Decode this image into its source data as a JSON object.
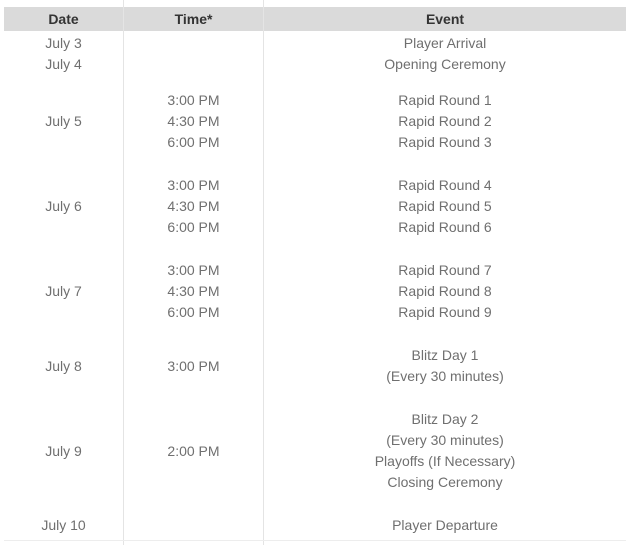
{
  "table": {
    "headers": [
      "Date",
      "Time*",
      "Event"
    ],
    "rows": [
      {
        "style": "tight first",
        "date": "July 3",
        "times": [],
        "events": [
          "Player Arrival"
        ]
      },
      {
        "style": "tight",
        "date": "July 4",
        "times": [],
        "events": [
          "Opening Ceremony"
        ]
      },
      {
        "style": "pad-top-lg",
        "date": "July 5",
        "times": [
          "3:00 PM",
          "4:30 PM",
          "6:00 PM"
        ],
        "events": [
          "Rapid Round 1",
          "Rapid Round 2",
          "Rapid Round 3"
        ]
      },
      {
        "style": "",
        "date": "July 6",
        "times": [
          "3:00 PM",
          "4:30 PM",
          "6:00 PM"
        ],
        "events": [
          "Rapid Round 4",
          "Rapid Round 5",
          "Rapid Round 6"
        ]
      },
      {
        "style": "",
        "date": "July 7",
        "times": [
          "3:00 PM",
          "4:30 PM",
          "6:00 PM"
        ],
        "events": [
          "Rapid Round 7",
          "Rapid Round 8",
          "Rapid Round 9"
        ]
      },
      {
        "style": "",
        "date": "July 8",
        "times": [
          "3:00 PM"
        ],
        "events": [
          "Blitz Day 1",
          "(Every 30 minutes)"
        ]
      },
      {
        "style": "",
        "date": "July 9",
        "times": [
          "2:00 PM"
        ],
        "events": [
          "Blitz Day 2",
          "(Every 30 minutes)",
          "Playoffs (If Necessary)",
          "Closing Ceremony"
        ]
      },
      {
        "style": "",
        "date": "July 10",
        "times": [],
        "events": [
          "Player Departure"
        ]
      }
    ],
    "colors": {
      "header_background": "#dadada",
      "header_text": "#333333",
      "body_text": "#6f6f6f",
      "column_divider": "#e4e4e4",
      "bottom_rule": "#ededed"
    }
  }
}
